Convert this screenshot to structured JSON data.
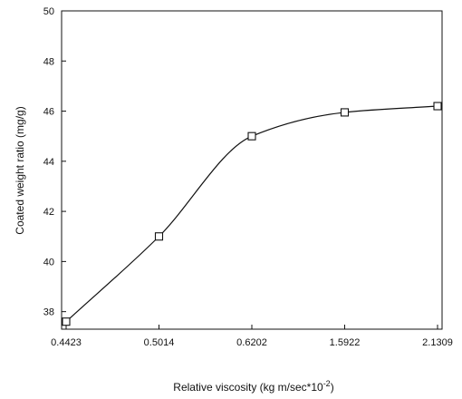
{
  "chart_data": {
    "type": "line",
    "title": "",
    "xlabel": "Relative viscosity (kg m/sec*10",
    "xlabel_superscript": "-2",
    "xlabel_suffix": ")",
    "ylabel": "Coated weight ratio (mg/g)",
    "categories": [
      "0.4423",
      "0.5014",
      "0.6202",
      "1.5922",
      "2.1309"
    ],
    "series": [
      {
        "values": [
          37.6,
          41.0,
          45.0,
          45.95,
          46.2
        ]
      }
    ],
    "ylim": [
      37.3,
      50
    ],
    "yticks": [
      38,
      40,
      42,
      44,
      46,
      48,
      50
    ],
    "grid": false,
    "marker": "square",
    "line_color": "#111111"
  }
}
